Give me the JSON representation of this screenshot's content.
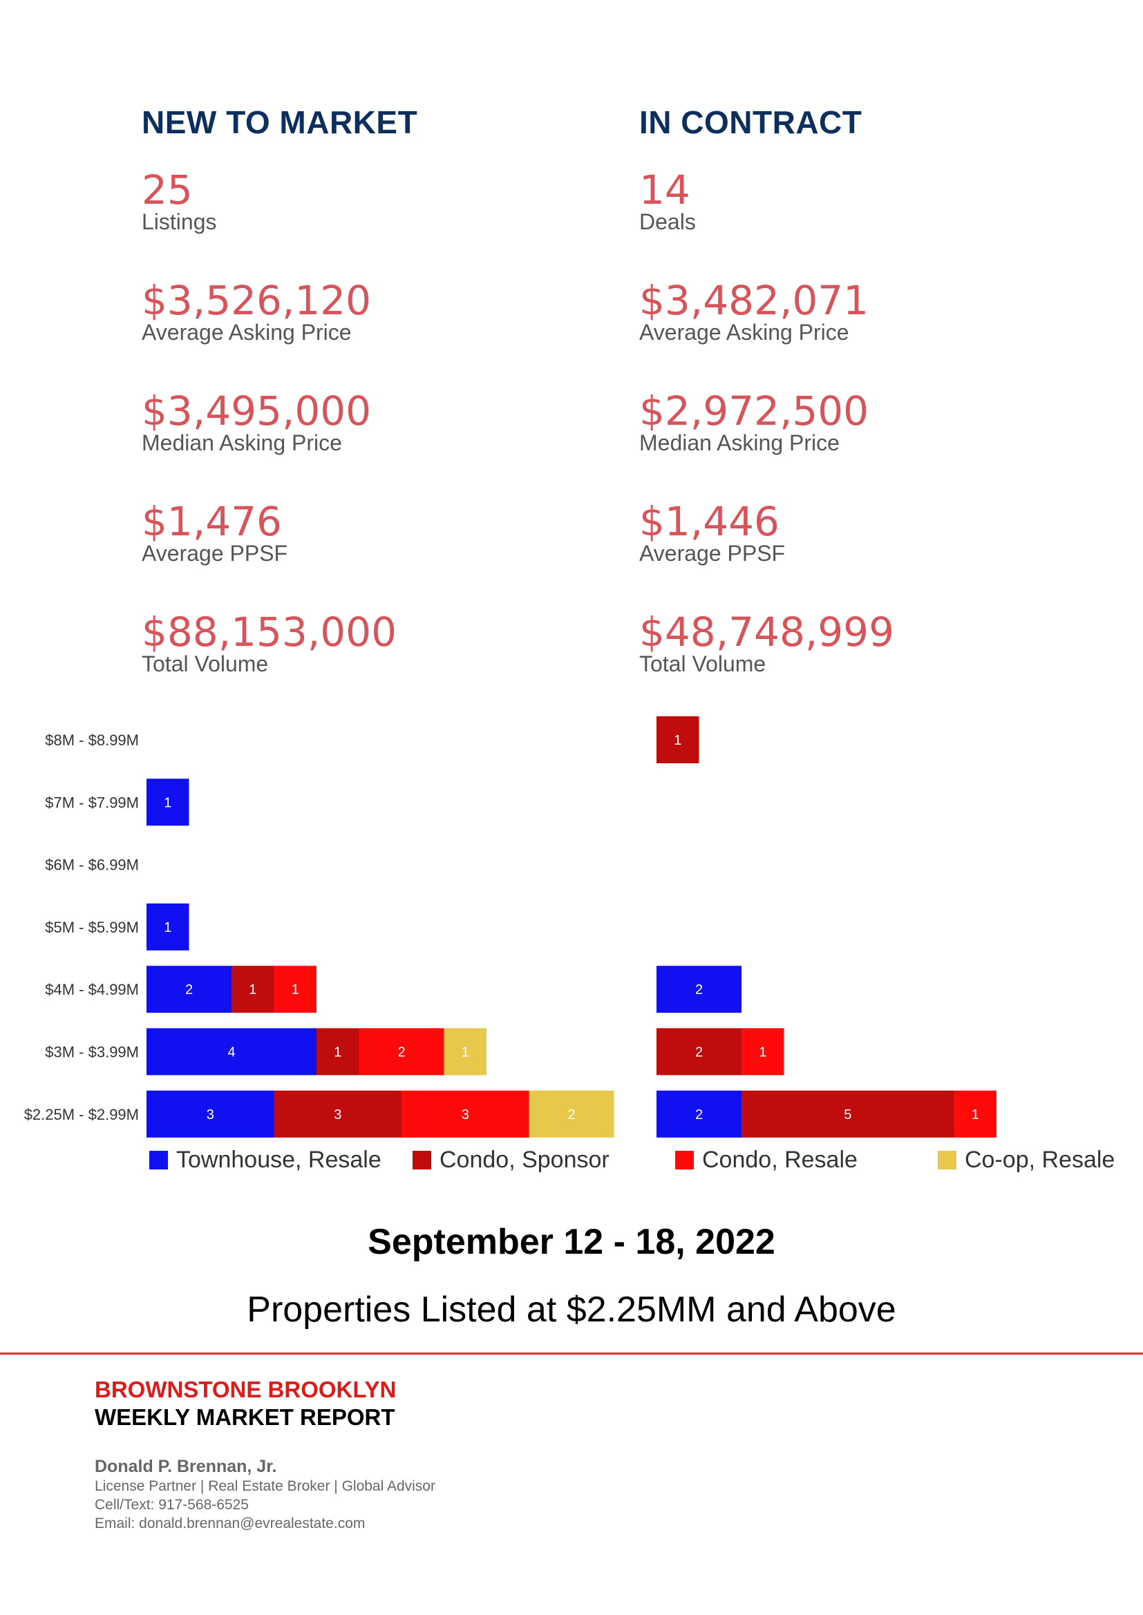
{
  "new_to_market": {
    "title": "NEW TO MARKET",
    "stats": [
      {
        "value": "25",
        "label": "Listings"
      },
      {
        "value": "$3,526,120",
        "label": "Average Asking Price"
      },
      {
        "value": "$3,495,000",
        "label": "Median Asking Price"
      },
      {
        "value": "$1,476",
        "label": "Average PPSF"
      },
      {
        "value": "$88,153,000",
        "label": "Total Volume"
      }
    ]
  },
  "in_contract": {
    "title": "IN CONTRACT",
    "stats": [
      {
        "value": "14",
        "label": "Deals"
      },
      {
        "value": "$3,482,071",
        "label": "Average Asking Price"
      },
      {
        "value": "$2,972,500",
        "label": "Median Asking Price"
      },
      {
        "value": "$1,446",
        "label": "Average PPSF"
      },
      {
        "value": "$48,748,999",
        "label": "Total Volume"
      }
    ]
  },
  "chart_data": [
    {
      "type": "bar",
      "orientation": "horizontal",
      "stacked": true,
      "panel": "NEW TO MARKET",
      "categories": [
        "$8M - $8.99M",
        "$7M - $7.99M",
        "$6M - $6.99M",
        "$5M - $5.99M",
        "$4M - $4.99M",
        "$3M - $3.99M",
        "$2.25M - $2.99M"
      ],
      "series": [
        {
          "name": "Townhouse, Resale",
          "color": "#1010f0",
          "values": [
            0,
            1,
            0,
            1,
            2,
            4,
            3
          ]
        },
        {
          "name": "Condo, Sponsor",
          "color": "#c00c0c",
          "values": [
            0,
            0,
            0,
            0,
            1,
            1,
            3
          ]
        },
        {
          "name": "Condo, Resale",
          "color": "#ff0a0a",
          "values": [
            0,
            0,
            0,
            0,
            1,
            2,
            3
          ]
        },
        {
          "name": "Co-op, Resale",
          "color": "#e8c84a",
          "values": [
            0,
            0,
            0,
            0,
            0,
            1,
            2
          ]
        }
      ]
    },
    {
      "type": "bar",
      "orientation": "horizontal",
      "stacked": true,
      "panel": "IN CONTRACT",
      "categories": [
        "$8M - $8.99M",
        "$7M - $7.99M",
        "$6M - $6.99M",
        "$5M - $5.99M",
        "$4M - $4.99M",
        "$3M - $3.99M",
        "$2.25M - $2.99M"
      ],
      "series": [
        {
          "name": "Townhouse, Resale",
          "color": "#1010f0",
          "values": [
            0,
            0,
            0,
            0,
            2,
            0,
            2
          ]
        },
        {
          "name": "Condo, Sponsor",
          "color": "#c00c0c",
          "values": [
            1,
            0,
            0,
            0,
            0,
            2,
            5
          ]
        },
        {
          "name": "Condo, Resale",
          "color": "#ff0a0a",
          "values": [
            0,
            0,
            0,
            0,
            0,
            1,
            1
          ]
        },
        {
          "name": "Co-op, Resale",
          "color": "#e8c84a",
          "values": [
            0,
            0,
            0,
            0,
            0,
            0,
            0
          ]
        }
      ]
    }
  ],
  "legend": [
    {
      "label": "Townhouse, Resale",
      "color": "#1010f0"
    },
    {
      "label": "Condo, Sponsor",
      "color": "#c00c0c"
    },
    {
      "label": "Condo, Resale",
      "color": "#ff0a0a"
    },
    {
      "label": "Co-op, Resale",
      "color": "#e8c84a"
    }
  ],
  "date_range": "September 12 - 18, 2022",
  "subtitle": "Properties Listed at $2.25MM and Above",
  "footer": {
    "brand": "BROWNSTONE BROOKLYN",
    "report": "WEEKLY MARKET REPORT",
    "agent_name": "Donald P. Brennan, Jr.",
    "agent_title": "License Partner | Real Estate Broker | Global Advisor",
    "agent_phone": "Cell/Text: 917-568-6525",
    "agent_email": "Email: donald.brennan@evrealestate.com"
  }
}
